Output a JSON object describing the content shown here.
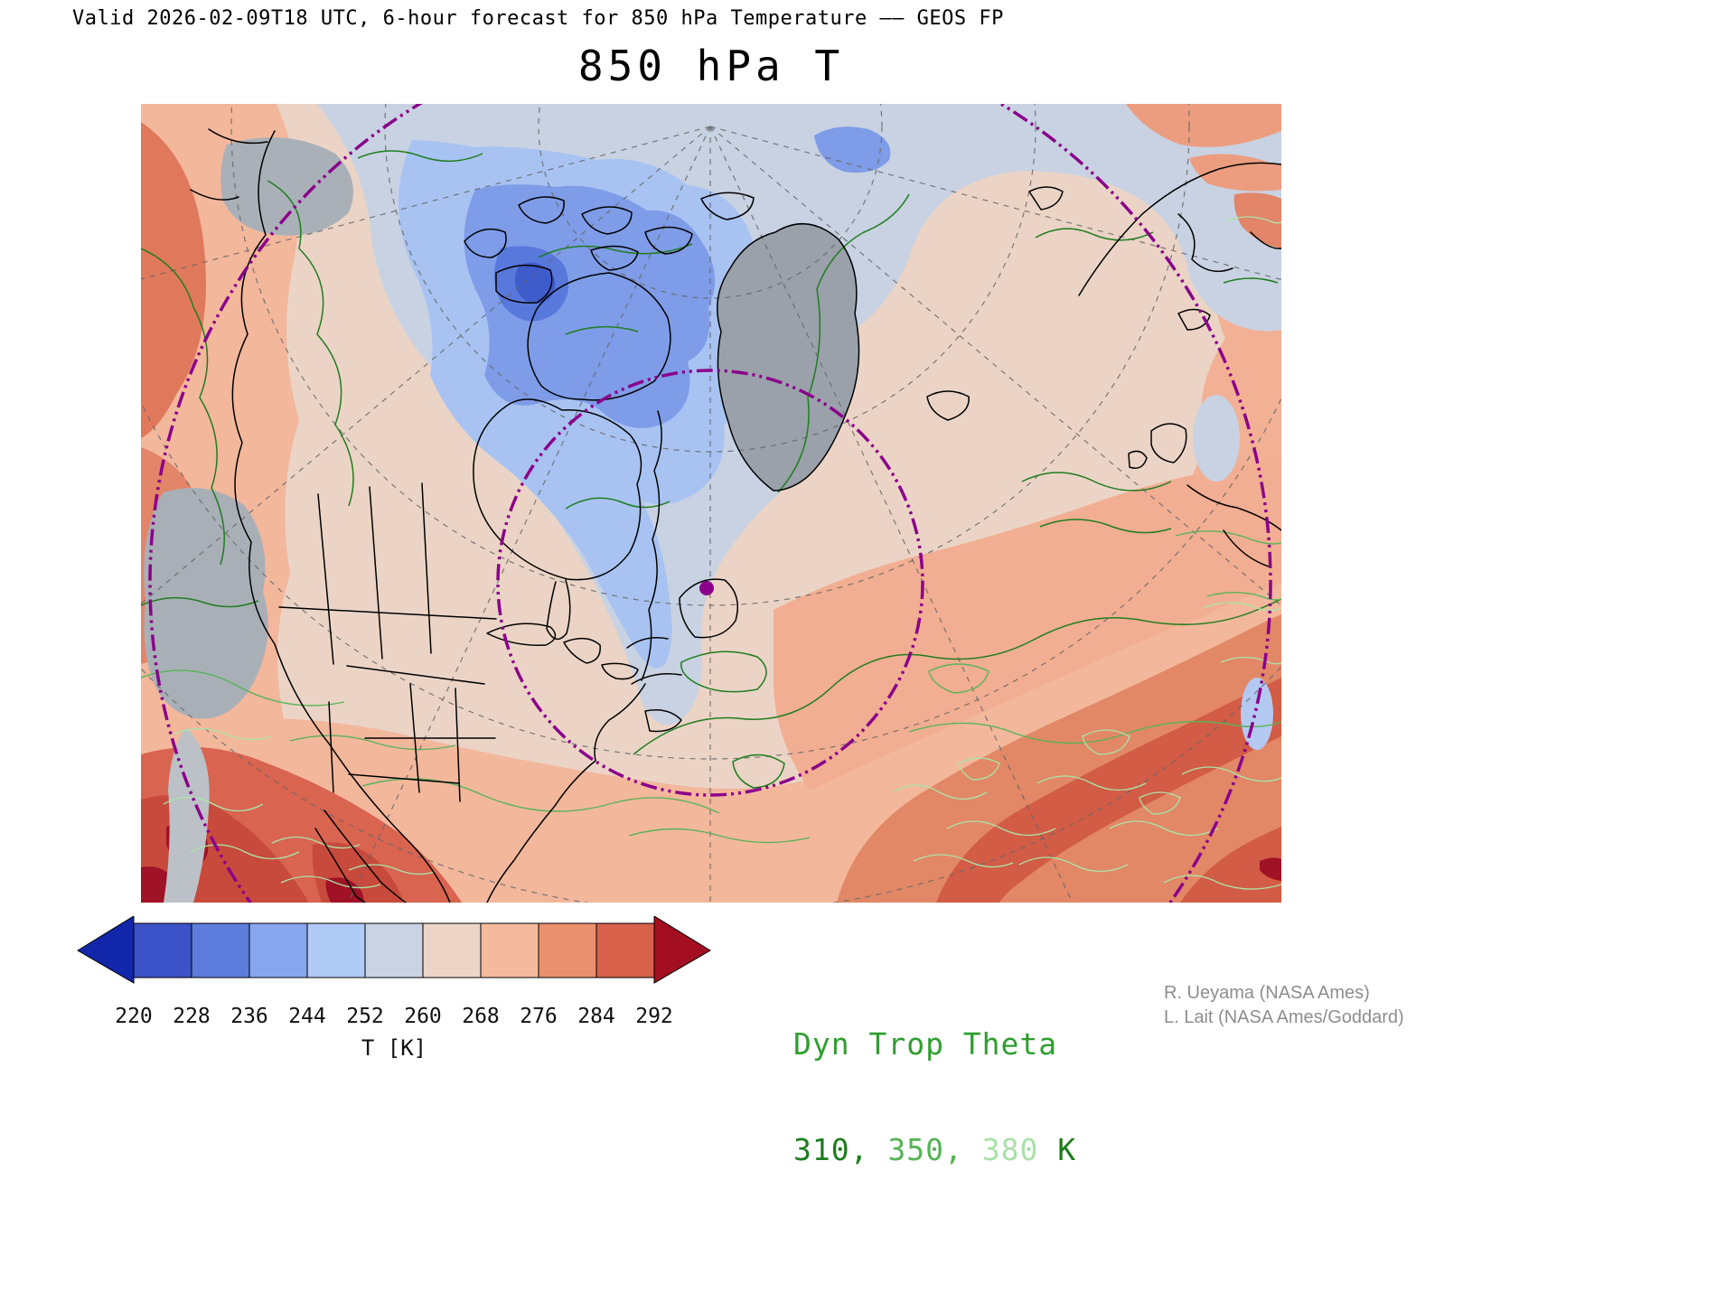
{
  "header": {
    "valid_line": "Valid 2026-02-09T18 UTC, 6-hour forecast for 850 hPa Temperature –– GEOS FP",
    "title": "850 hPa T"
  },
  "colorbar": {
    "unit_label": "T [K]",
    "ticks": [
      "220",
      "228",
      "236",
      "244",
      "252",
      "260",
      "268",
      "276",
      "284",
      "292"
    ],
    "cell_colors": [
      "#3b52c8",
      "#5d7cdc",
      "#87a6ee",
      "#b0caf6",
      "#c9d3e2",
      "#ecd5c7",
      "#f4ba9e",
      "#ea906e",
      "#d8614b"
    ],
    "arrow_low_color": "#1226aa",
    "arrow_high_color": "#a30f20"
  },
  "legend": {
    "title": "Dyn Trop Theta",
    "title_color": "#2f9e2f",
    "items": [
      {
        "label": "310",
        "color": "#1d7d1d"
      },
      {
        "label": "350",
        "color": "#55b355"
      },
      {
        "label": "380",
        "color": "#a9e0a9"
      }
    ],
    "separator": ", ",
    "unit": "K",
    "unit_color": "#1d7d1d"
  },
  "credits": {
    "line1": "R. Ueyama (NASA Ames)",
    "line2": "L. Lait (NASA Ames/Goddard)"
  },
  "map": {
    "marker_color": "#8b008b",
    "ring_color": "#8b008b",
    "contour_310_color": "#1f7d1f",
    "contour_350_color": "#58b458",
    "contour_380_color": "#a9e5a9"
  }
}
